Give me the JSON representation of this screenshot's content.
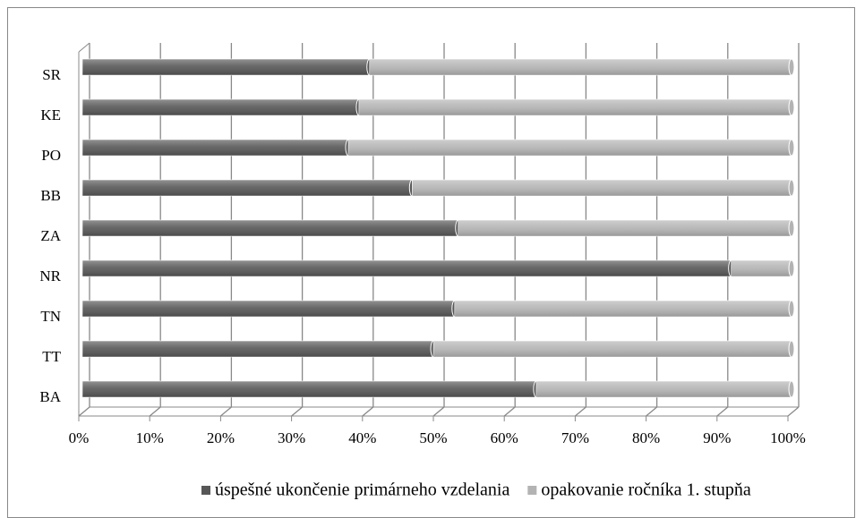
{
  "chart_data": {
    "type": "bar",
    "orientation": "horizontal",
    "stacked": true,
    "categories": [
      "BA",
      "TT",
      "TN",
      "NR",
      "ZA",
      "BB",
      "PO",
      "KE",
      "SR"
    ],
    "series": [
      {
        "name": "úspešné ukončenie primárneho vzdelania",
        "color": "#575757",
        "values": [
          64,
          49.5,
          52.5,
          91.5,
          53,
          46.5,
          37.5,
          39,
          40.5
        ]
      },
      {
        "name": "opakovanie ročníka 1. stupňa",
        "color": "#b3b3b3",
        "values": [
          36,
          50.5,
          47.5,
          8.5,
          47,
          53.5,
          62.5,
          61,
          59.5
        ]
      }
    ],
    "xlim": [
      0,
      100
    ],
    "xticks": [
      {
        "value": 0,
        "label": "0%"
      },
      {
        "value": 10,
        "label": "10%"
      },
      {
        "value": 20,
        "label": "20%"
      },
      {
        "value": 30,
        "label": "30%"
      },
      {
        "value": 40,
        "label": "40%"
      },
      {
        "value": 50,
        "label": "50%"
      },
      {
        "value": 60,
        "label": "60%"
      },
      {
        "value": 70,
        "label": "70%"
      },
      {
        "value": 80,
        "label": "80%"
      },
      {
        "value": 90,
        "label": "90%"
      },
      {
        "value": 100,
        "label": "100%"
      }
    ],
    "grid": true,
    "legend": "bottom"
  }
}
